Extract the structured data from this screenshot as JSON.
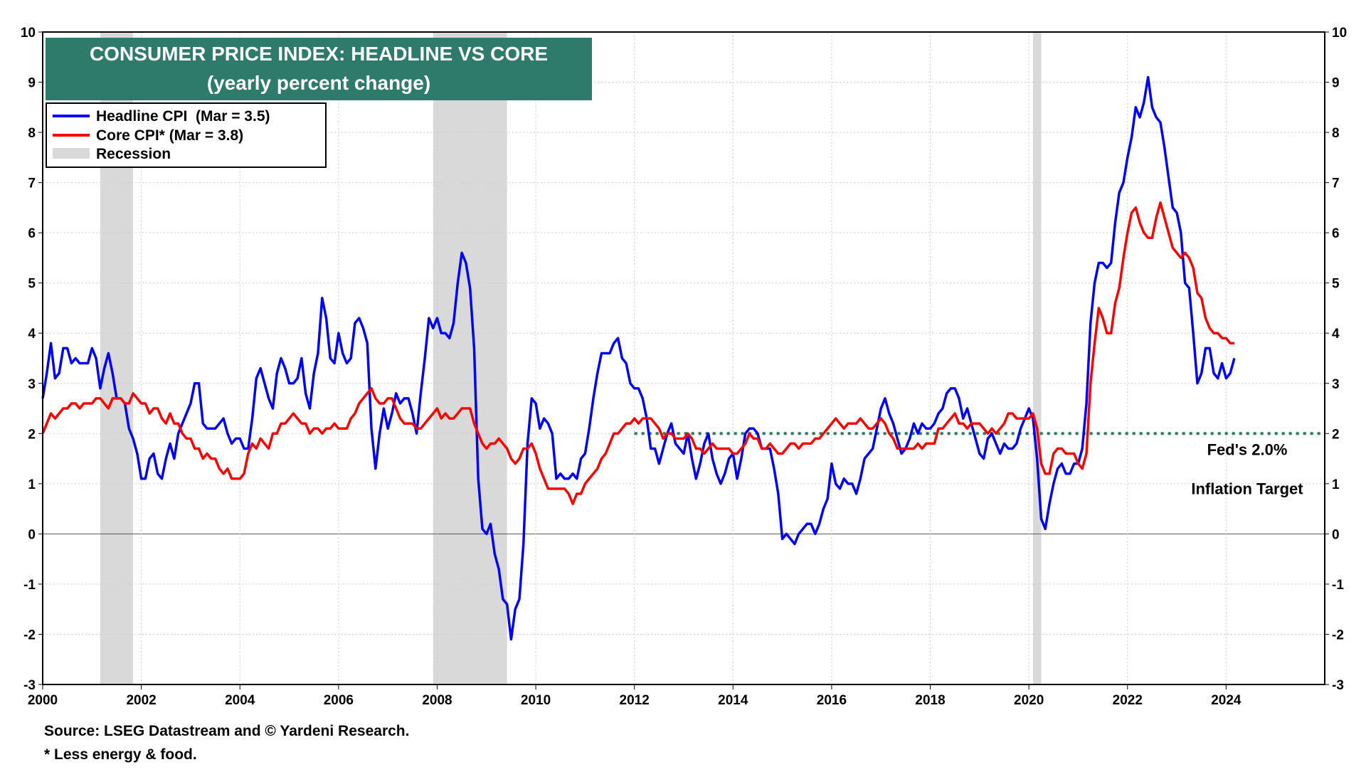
{
  "chart_data": {
    "type": "line",
    "title": "CONSUMER PRICE INDEX: HEADLINE VS CORE",
    "subtitle": "(yearly percent change)",
    "title_color": "#2f7b6b",
    "x": [
      2000,
      2000.083,
      2000.167,
      2000.25,
      2000.333,
      2000.417,
      2000.5,
      2000.583,
      2000.667,
      2000.75,
      2000.833,
      2000.917,
      2001,
      2001.083,
      2001.167,
      2001.25,
      2001.333,
      2001.417,
      2001.5,
      2001.583,
      2001.667,
      2001.75,
      2001.833,
      2001.917,
      2002,
      2002.083,
      2002.167,
      2002.25,
      2002.333,
      2002.417,
      2002.5,
      2002.583,
      2002.667,
      2002.75,
      2002.833,
      2002.917,
      2003,
      2003.083,
      2003.167,
      2003.25,
      2003.333,
      2003.417,
      2003.5,
      2003.583,
      2003.667,
      2003.75,
      2003.833,
      2003.917,
      2004,
      2004.083,
      2004.167,
      2004.25,
      2004.333,
      2004.417,
      2004.5,
      2004.583,
      2004.667,
      2004.75,
      2004.833,
      2004.917,
      2005,
      2005.083,
      2005.167,
      2005.25,
      2005.333,
      2005.417,
      2005.5,
      2005.583,
      2005.667,
      2005.75,
      2005.833,
      2005.917,
      2006,
      2006.083,
      2006.167,
      2006.25,
      2006.333,
      2006.417,
      2006.5,
      2006.583,
      2006.667,
      2006.75,
      2006.833,
      2006.917,
      2007,
      2007.083,
      2007.167,
      2007.25,
      2007.333,
      2007.417,
      2007.5,
      2007.583,
      2007.667,
      2007.75,
      2007.833,
      2007.917,
      2008,
      2008.083,
      2008.167,
      2008.25,
      2008.333,
      2008.417,
      2008.5,
      2008.583,
      2008.667,
      2008.75,
      2008.833,
      2008.917,
      2009,
      2009.083,
      2009.167,
      2009.25,
      2009.333,
      2009.417,
      2009.5,
      2009.583,
      2009.667,
      2009.75,
      2009.833,
      2009.917,
      2010,
      2010.083,
      2010.167,
      2010.25,
      2010.333,
      2010.417,
      2010.5,
      2010.583,
      2010.667,
      2010.75,
      2010.833,
      2010.917,
      2011,
      2011.083,
      2011.167,
      2011.25,
      2011.333,
      2011.417,
      2011.5,
      2011.583,
      2011.667,
      2011.75,
      2011.833,
      2011.917,
      2012,
      2012.083,
      2012.167,
      2012.25,
      2012.333,
      2012.417,
      2012.5,
      2012.583,
      2012.667,
      2012.75,
      2012.833,
      2012.917,
      2013,
      2013.083,
      2013.167,
      2013.25,
      2013.333,
      2013.417,
      2013.5,
      2013.583,
      2013.667,
      2013.75,
      2013.833,
      2013.917,
      2014,
      2014.083,
      2014.167,
      2014.25,
      2014.333,
      2014.417,
      2014.5,
      2014.583,
      2014.667,
      2014.75,
      2014.833,
      2014.917,
      2015,
      2015.083,
      2015.167,
      2015.25,
      2015.333,
      2015.417,
      2015.5,
      2015.583,
      2015.667,
      2015.75,
      2015.833,
      2015.917,
      2016,
      2016.083,
      2016.167,
      2016.25,
      2016.333,
      2016.417,
      2016.5,
      2016.583,
      2016.667,
      2016.75,
      2016.833,
      2016.917,
      2017,
      2017.083,
      2017.167,
      2017.25,
      2017.333,
      2017.417,
      2017.5,
      2017.583,
      2017.667,
      2017.75,
      2017.833,
      2017.917,
      2018,
      2018.083,
      2018.167,
      2018.25,
      2018.333,
      2018.417,
      2018.5,
      2018.583,
      2018.667,
      2018.75,
      2018.833,
      2018.917,
      2019,
      2019.083,
      2019.167,
      2019.25,
      2019.333,
      2019.417,
      2019.5,
      2019.583,
      2019.667,
      2019.75,
      2019.833,
      2019.917,
      2020,
      2020.083,
      2020.167,
      2020.25,
      2020.333,
      2020.417,
      2020.5,
      2020.583,
      2020.667,
      2020.75,
      2020.833,
      2020.917,
      2021,
      2021.083,
      2021.167,
      2021.25,
      2021.333,
      2021.417,
      2021.5,
      2021.583,
      2021.667,
      2021.75,
      2021.833,
      2021.917,
      2022,
      2022.083,
      2022.167,
      2022.25,
      2022.333,
      2022.417,
      2022.5,
      2022.583,
      2022.667,
      2022.75,
      2022.833,
      2022.917,
      2023,
      2023.083,
      2023.167,
      2023.25,
      2023.333,
      2023.417,
      2023.5,
      2023.583,
      2023.667,
      2023.75,
      2023.833,
      2023.917,
      2024,
      2024.083,
      2024.167
    ],
    "series": [
      {
        "name": "Headline CPI  (Mar = 3.5)",
        "color": "#0000ff",
        "values": [
          2.7,
          3.2,
          3.8,
          3.1,
          3.2,
          3.7,
          3.7,
          3.4,
          3.5,
          3.4,
          3.4,
          3.4,
          3.7,
          3.5,
          2.9,
          3.3,
          3.6,
          3.2,
          2.7,
          2.7,
          2.6,
          2.1,
          1.9,
          1.6,
          1.1,
          1.1,
          1.5,
          1.6,
          1.2,
          1.1,
          1.5,
          1.8,
          1.5,
          2.0,
          2.2,
          2.4,
          2.6,
          3.0,
          3.0,
          2.2,
          2.1,
          2.1,
          2.1,
          2.2,
          2.3,
          2.0,
          1.8,
          1.9,
          1.9,
          1.7,
          1.7,
          2.3,
          3.1,
          3.3,
          3.0,
          2.7,
          2.5,
          3.2,
          3.5,
          3.3,
          3.0,
          3.0,
          3.1,
          3.5,
          2.8,
          2.5,
          3.2,
          3.6,
          4.7,
          4.3,
          3.5,
          3.4,
          4.0,
          3.6,
          3.4,
          3.5,
          4.2,
          4.3,
          4.1,
          3.8,
          2.1,
          1.3,
          2.0,
          2.5,
          2.1,
          2.4,
          2.8,
          2.6,
          2.7,
          2.7,
          2.4,
          2.0,
          2.8,
          3.5,
          4.3,
          4.1,
          4.3,
          4.0,
          4.0,
          3.9,
          4.2,
          5.0,
          5.6,
          5.4,
          4.9,
          3.7,
          1.1,
          0.1,
          0.0,
          0.2,
          -0.4,
          -0.7,
          -1.3,
          -1.4,
          -2.1,
          -1.5,
          -1.3,
          -0.2,
          1.8,
          2.7,
          2.6,
          2.1,
          2.3,
          2.2,
          2.0,
          1.1,
          1.2,
          1.1,
          1.1,
          1.2,
          1.1,
          1.5,
          1.6,
          2.1,
          2.7,
          3.2,
          3.6,
          3.6,
          3.6,
          3.8,
          3.9,
          3.5,
          3.4,
          3.0,
          2.9,
          2.9,
          2.7,
          2.3,
          1.7,
          1.7,
          1.4,
          1.7,
          2.0,
          2.2,
          1.8,
          1.7,
          1.6,
          2.0,
          1.5,
          1.1,
          1.4,
          1.8,
          2.0,
          1.5,
          1.2,
          1.0,
          1.2,
          1.5,
          1.6,
          1.1,
          1.5,
          2.0,
          2.1,
          2.1,
          2.0,
          1.7,
          1.7,
          1.7,
          1.3,
          0.8,
          -0.1,
          0.0,
          -0.1,
          -0.2,
          0.0,
          0.1,
          0.2,
          0.2,
          0.0,
          0.2,
          0.5,
          0.7,
          1.4,
          1.0,
          0.9,
          1.1,
          1.0,
          1.0,
          0.8,
          1.1,
          1.5,
          1.6,
          1.7,
          2.1,
          2.5,
          2.7,
          2.4,
          2.2,
          1.9,
          1.6,
          1.7,
          1.9,
          2.2,
          2.0,
          2.2,
          2.1,
          2.1,
          2.2,
          2.4,
          2.5,
          2.8,
          2.9,
          2.9,
          2.7,
          2.3,
          2.5,
          2.2,
          1.9,
          1.6,
          1.5,
          1.9,
          2.0,
          1.8,
          1.6,
          1.8,
          1.7,
          1.7,
          1.8,
          2.1,
          2.3,
          2.5,
          2.3,
          1.5,
          0.3,
          0.1,
          0.6,
          1.0,
          1.3,
          1.4,
          1.2,
          1.2,
          1.4,
          1.4,
          1.7,
          2.6,
          4.2,
          5.0,
          5.4,
          5.4,
          5.3,
          5.4,
          6.2,
          6.8,
          7.0,
          7.5,
          7.9,
          8.5,
          8.3,
          8.6,
          9.1,
          8.5,
          8.3,
          8.2,
          7.7,
          7.1,
          6.5,
          6.4,
          6.0,
          5.0,
          4.9,
          4.0,
          3.0,
          3.2,
          3.7,
          3.7,
          3.2,
          3.1,
          3.4,
          3.1,
          3.2,
          3.5
        ]
      },
      {
        "name": "Core CPI* (Mar = 3.8)",
        "color": "#ff0000",
        "values": [
          2.0,
          2.2,
          2.4,
          2.3,
          2.4,
          2.5,
          2.5,
          2.6,
          2.6,
          2.5,
          2.6,
          2.6,
          2.6,
          2.7,
          2.7,
          2.6,
          2.5,
          2.7,
          2.7,
          2.7,
          2.6,
          2.6,
          2.8,
          2.7,
          2.6,
          2.6,
          2.4,
          2.5,
          2.5,
          2.3,
          2.2,
          2.4,
          2.2,
          2.2,
          2.0,
          1.9,
          1.9,
          1.7,
          1.7,
          1.5,
          1.6,
          1.5,
          1.5,
          1.3,
          1.2,
          1.3,
          1.1,
          1.1,
          1.1,
          1.2,
          1.6,
          1.8,
          1.7,
          1.9,
          1.8,
          1.7,
          2.0,
          2.0,
          2.2,
          2.2,
          2.3,
          2.4,
          2.3,
          2.2,
          2.2,
          2.0,
          2.1,
          2.1,
          2.0,
          2.1,
          2.1,
          2.2,
          2.1,
          2.1,
          2.1,
          2.3,
          2.4,
          2.6,
          2.7,
          2.8,
          2.9,
          2.7,
          2.6,
          2.6,
          2.7,
          2.7,
          2.5,
          2.3,
          2.2,
          2.2,
          2.2,
          2.1,
          2.1,
          2.2,
          2.3,
          2.4,
          2.5,
          2.3,
          2.4,
          2.3,
          2.3,
          2.4,
          2.5,
          2.5,
          2.5,
          2.2,
          2.0,
          1.8,
          1.7,
          1.8,
          1.8,
          1.9,
          1.8,
          1.7,
          1.5,
          1.4,
          1.5,
          1.7,
          1.7,
          1.8,
          1.6,
          1.3,
          1.1,
          0.9,
          0.9,
          0.9,
          0.9,
          0.9,
          0.8,
          0.6,
          0.8,
          0.8,
          1.0,
          1.1,
          1.2,
          1.3,
          1.5,
          1.6,
          1.8,
          2.0,
          2.0,
          2.1,
          2.2,
          2.2,
          2.3,
          2.2,
          2.3,
          2.3,
          2.3,
          2.2,
          2.1,
          1.9,
          2.0,
          2.0,
          1.9,
          1.9,
          1.9,
          2.0,
          1.9,
          1.7,
          1.7,
          1.6,
          1.7,
          1.8,
          1.7,
          1.7,
          1.7,
          1.7,
          1.6,
          1.6,
          1.7,
          1.8,
          2.0,
          1.9,
          1.9,
          1.7,
          1.7,
          1.8,
          1.7,
          1.6,
          1.6,
          1.7,
          1.8,
          1.8,
          1.7,
          1.8,
          1.8,
          1.8,
          1.9,
          1.9,
          2.0,
          2.1,
          2.2,
          2.3,
          2.2,
          2.1,
          2.2,
          2.2,
          2.2,
          2.3,
          2.2,
          2.1,
          2.1,
          2.2,
          2.3,
          2.2,
          2.0,
          1.9,
          1.7,
          1.7,
          1.7,
          1.7,
          1.7,
          1.8,
          1.7,
          1.8,
          1.8,
          1.8,
          2.1,
          2.1,
          2.2,
          2.3,
          2.4,
          2.2,
          2.2,
          2.1,
          2.2,
          2.2,
          2.2,
          2.1,
          2.0,
          2.1,
          2.0,
          2.1,
          2.2,
          2.4,
          2.4,
          2.3,
          2.3,
          2.3,
          2.3,
          2.4,
          2.1,
          1.4,
          1.2,
          1.2,
          1.6,
          1.7,
          1.7,
          1.6,
          1.6,
          1.6,
          1.4,
          1.3,
          1.6,
          3.0,
          3.8,
          4.5,
          4.3,
          4.0,
          4.0,
          4.6,
          4.9,
          5.5,
          6.0,
          6.4,
          6.5,
          6.2,
          6.0,
          5.9,
          5.9,
          6.3,
          6.6,
          6.3,
          6.0,
          5.7,
          5.6,
          5.5,
          5.6,
          5.5,
          5.3,
          4.8,
          4.7,
          4.3,
          4.1,
          4.0,
          4.0,
          3.9,
          3.9,
          3.8,
          3.8
        ]
      }
    ],
    "recession_label": "Recession",
    "recession_color": "#d9d9d9",
    "recessions": [
      [
        2001.167,
        2001.833
      ],
      [
        2007.917,
        2009.417
      ],
      [
        2020.083,
        2020.25
      ]
    ],
    "target": {
      "value": 2,
      "start": 2012,
      "color": "#2a7d62",
      "label": [
        "Fed's 2.0%",
        "Inflation Target"
      ]
    },
    "xlim": [
      2000,
      2026
    ],
    "xticks": [
      2000,
      2002,
      2004,
      2006,
      2008,
      2010,
      2012,
      2014,
      2016,
      2018,
      2020,
      2022,
      2024
    ],
    "ylim": [
      -3,
      10
    ],
    "yticks": [
      -3,
      -2,
      -1,
      0,
      1,
      2,
      3,
      4,
      5,
      6,
      7,
      8,
      9,
      10
    ],
    "y2lim": [
      -3,
      10
    ],
    "y2ticks": [
      -3,
      -2,
      -1,
      0,
      1,
      2,
      3,
      4,
      5,
      6,
      7,
      8,
      9,
      10
    ],
    "grid": true,
    "legend": "upper left",
    "footnotes": [
      "Source: LSEG Datastream and © Yardeni Research.",
      "* Less energy & food."
    ]
  }
}
